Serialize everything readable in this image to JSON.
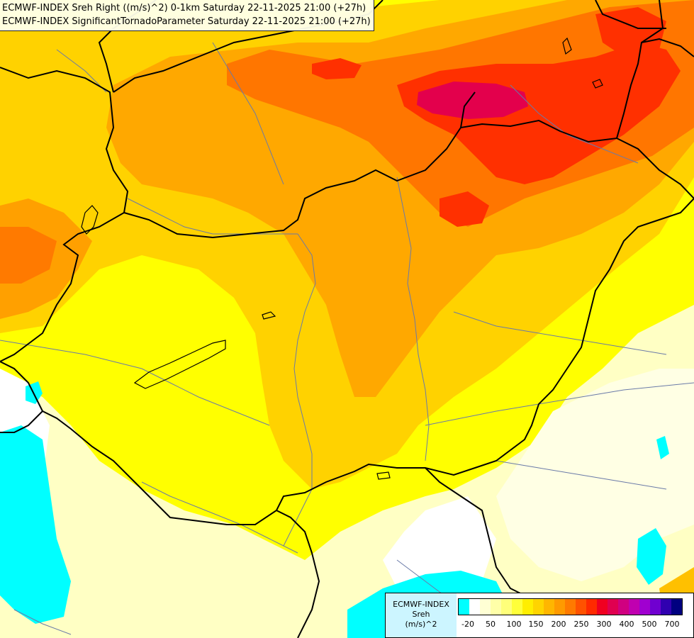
{
  "titles": {
    "line1": "ECMWF-INDEX Sreh Right ((m/s)^2) 0-1km Saturday 22-11-2025 21:00 (+27h)",
    "line2": "ECMWF-INDEX SignificantTornadoParameter Saturday 22-11-2025 21:00 (+27h)"
  },
  "legend": {
    "model": "ECMWF-INDEX",
    "variable": "Sreh",
    "unit": "(m/s)^2",
    "colors": [
      "#00ffff",
      "#ffffff",
      "#ffffd4",
      "#ffffa8",
      "#ffff7a",
      "#ffff3a",
      "#ffee00",
      "#ffd400",
      "#ffb600",
      "#ff9a00",
      "#ff7a00",
      "#ff5200",
      "#ff2a00",
      "#f00020",
      "#e00050",
      "#d00080",
      "#c000b0",
      "#a000d0",
      "#7000d0",
      "#3000b0",
      "#000080"
    ],
    "tick_labels": [
      "-20",
      "50",
      "100",
      "150",
      "200",
      "250",
      "300",
      "400",
      "500",
      "700"
    ]
  },
  "palette": {
    "border": "#000000",
    "river": "#6a7aa8",
    "low": "#ffffc0",
    "yellow": "#ffff00",
    "amber": "#ffd000",
    "orange": "#ffa000",
    "dark_orange": "#ff7000",
    "red": "#ff2800",
    "magenta": "#e0004a",
    "cyan": "#00ffff"
  }
}
